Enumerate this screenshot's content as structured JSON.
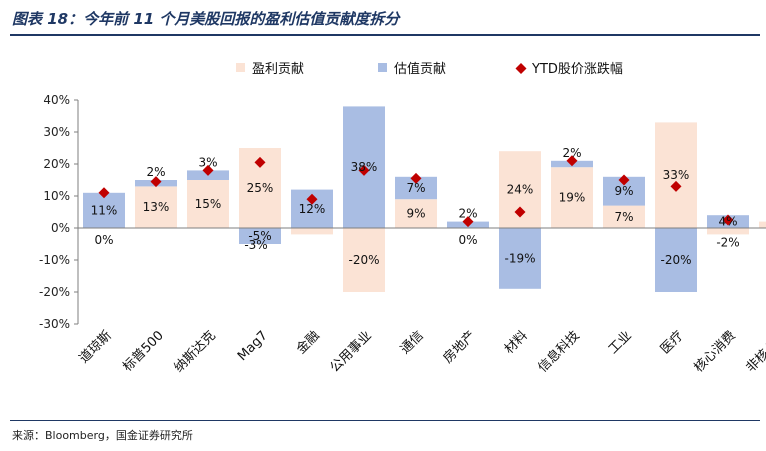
{
  "header": {
    "title": "图表 18：今年前 11 个月美股回报的盈利估值贡献度拆分"
  },
  "footer": {
    "source": "来源：Bloomberg，国金证券研究所"
  },
  "colors": {
    "earnings": "#fbe3d5",
    "valuation": "#a9bde3",
    "ytd": "#c00000",
    "axis": "#7f7f7f",
    "title": "#1f3864"
  },
  "chart_data": {
    "type": "bar",
    "stacked": true,
    "title": "",
    "ylim": [
      -30,
      40
    ],
    "yticks": [
      -30,
      -20,
      -10,
      0,
      10,
      20,
      30,
      40
    ],
    "ytick_labels": [
      "-30%",
      "-20%",
      "-10%",
      "0%",
      "10%",
      "20%",
      "30%",
      "40%"
    ],
    "legend_position": "top",
    "categories": [
      "道琼斯",
      "标普500",
      "纳斯达克",
      "Mag7",
      "金融",
      "公用事业",
      "通信",
      "房地产",
      "材料",
      "信息科技",
      "工业",
      "医疗",
      "核心消费",
      "非核心消"
    ],
    "series": [
      {
        "name": "盈利贡献",
        "kind": "bar",
        "color": "#fbe3d5",
        "values": [
          0,
          13,
          15,
          25,
          -2,
          -20,
          9,
          0,
          24,
          19,
          7,
          33,
          -2,
          2
        ],
        "labels": [
          "0%",
          "13%",
          "15%",
          "25%",
          "",
          "-20%",
          "9%",
          "0%",
          "24%",
          "19%",
          "7%",
          "33%",
          "-2%",
          ""
        ]
      },
      {
        "name": "估值贡献",
        "kind": "bar",
        "color": "#a9bde3",
        "values": [
          11,
          2,
          3,
          -5,
          12,
          38,
          7,
          2,
          -19,
          2,
          9,
          -20,
          4,
          0
        ],
        "labels": [
          "11%",
          "2%",
          "3%",
          "-5%",
          "12%",
          "38%",
          "7%",
          "2%",
          "-19%",
          "2%",
          "9%",
          "-20%",
          "4%",
          ""
        ]
      },
      {
        "name": "YTD股价涨跌幅",
        "kind": "marker",
        "color": "#c00000",
        "values": [
          11,
          14.5,
          18,
          20.5,
          9,
          18,
          15.5,
          2,
          5,
          21,
          15,
          13,
          2.5,
          null
        ]
      }
    ],
    "extra_labels": [
      "-3%"
    ]
  }
}
